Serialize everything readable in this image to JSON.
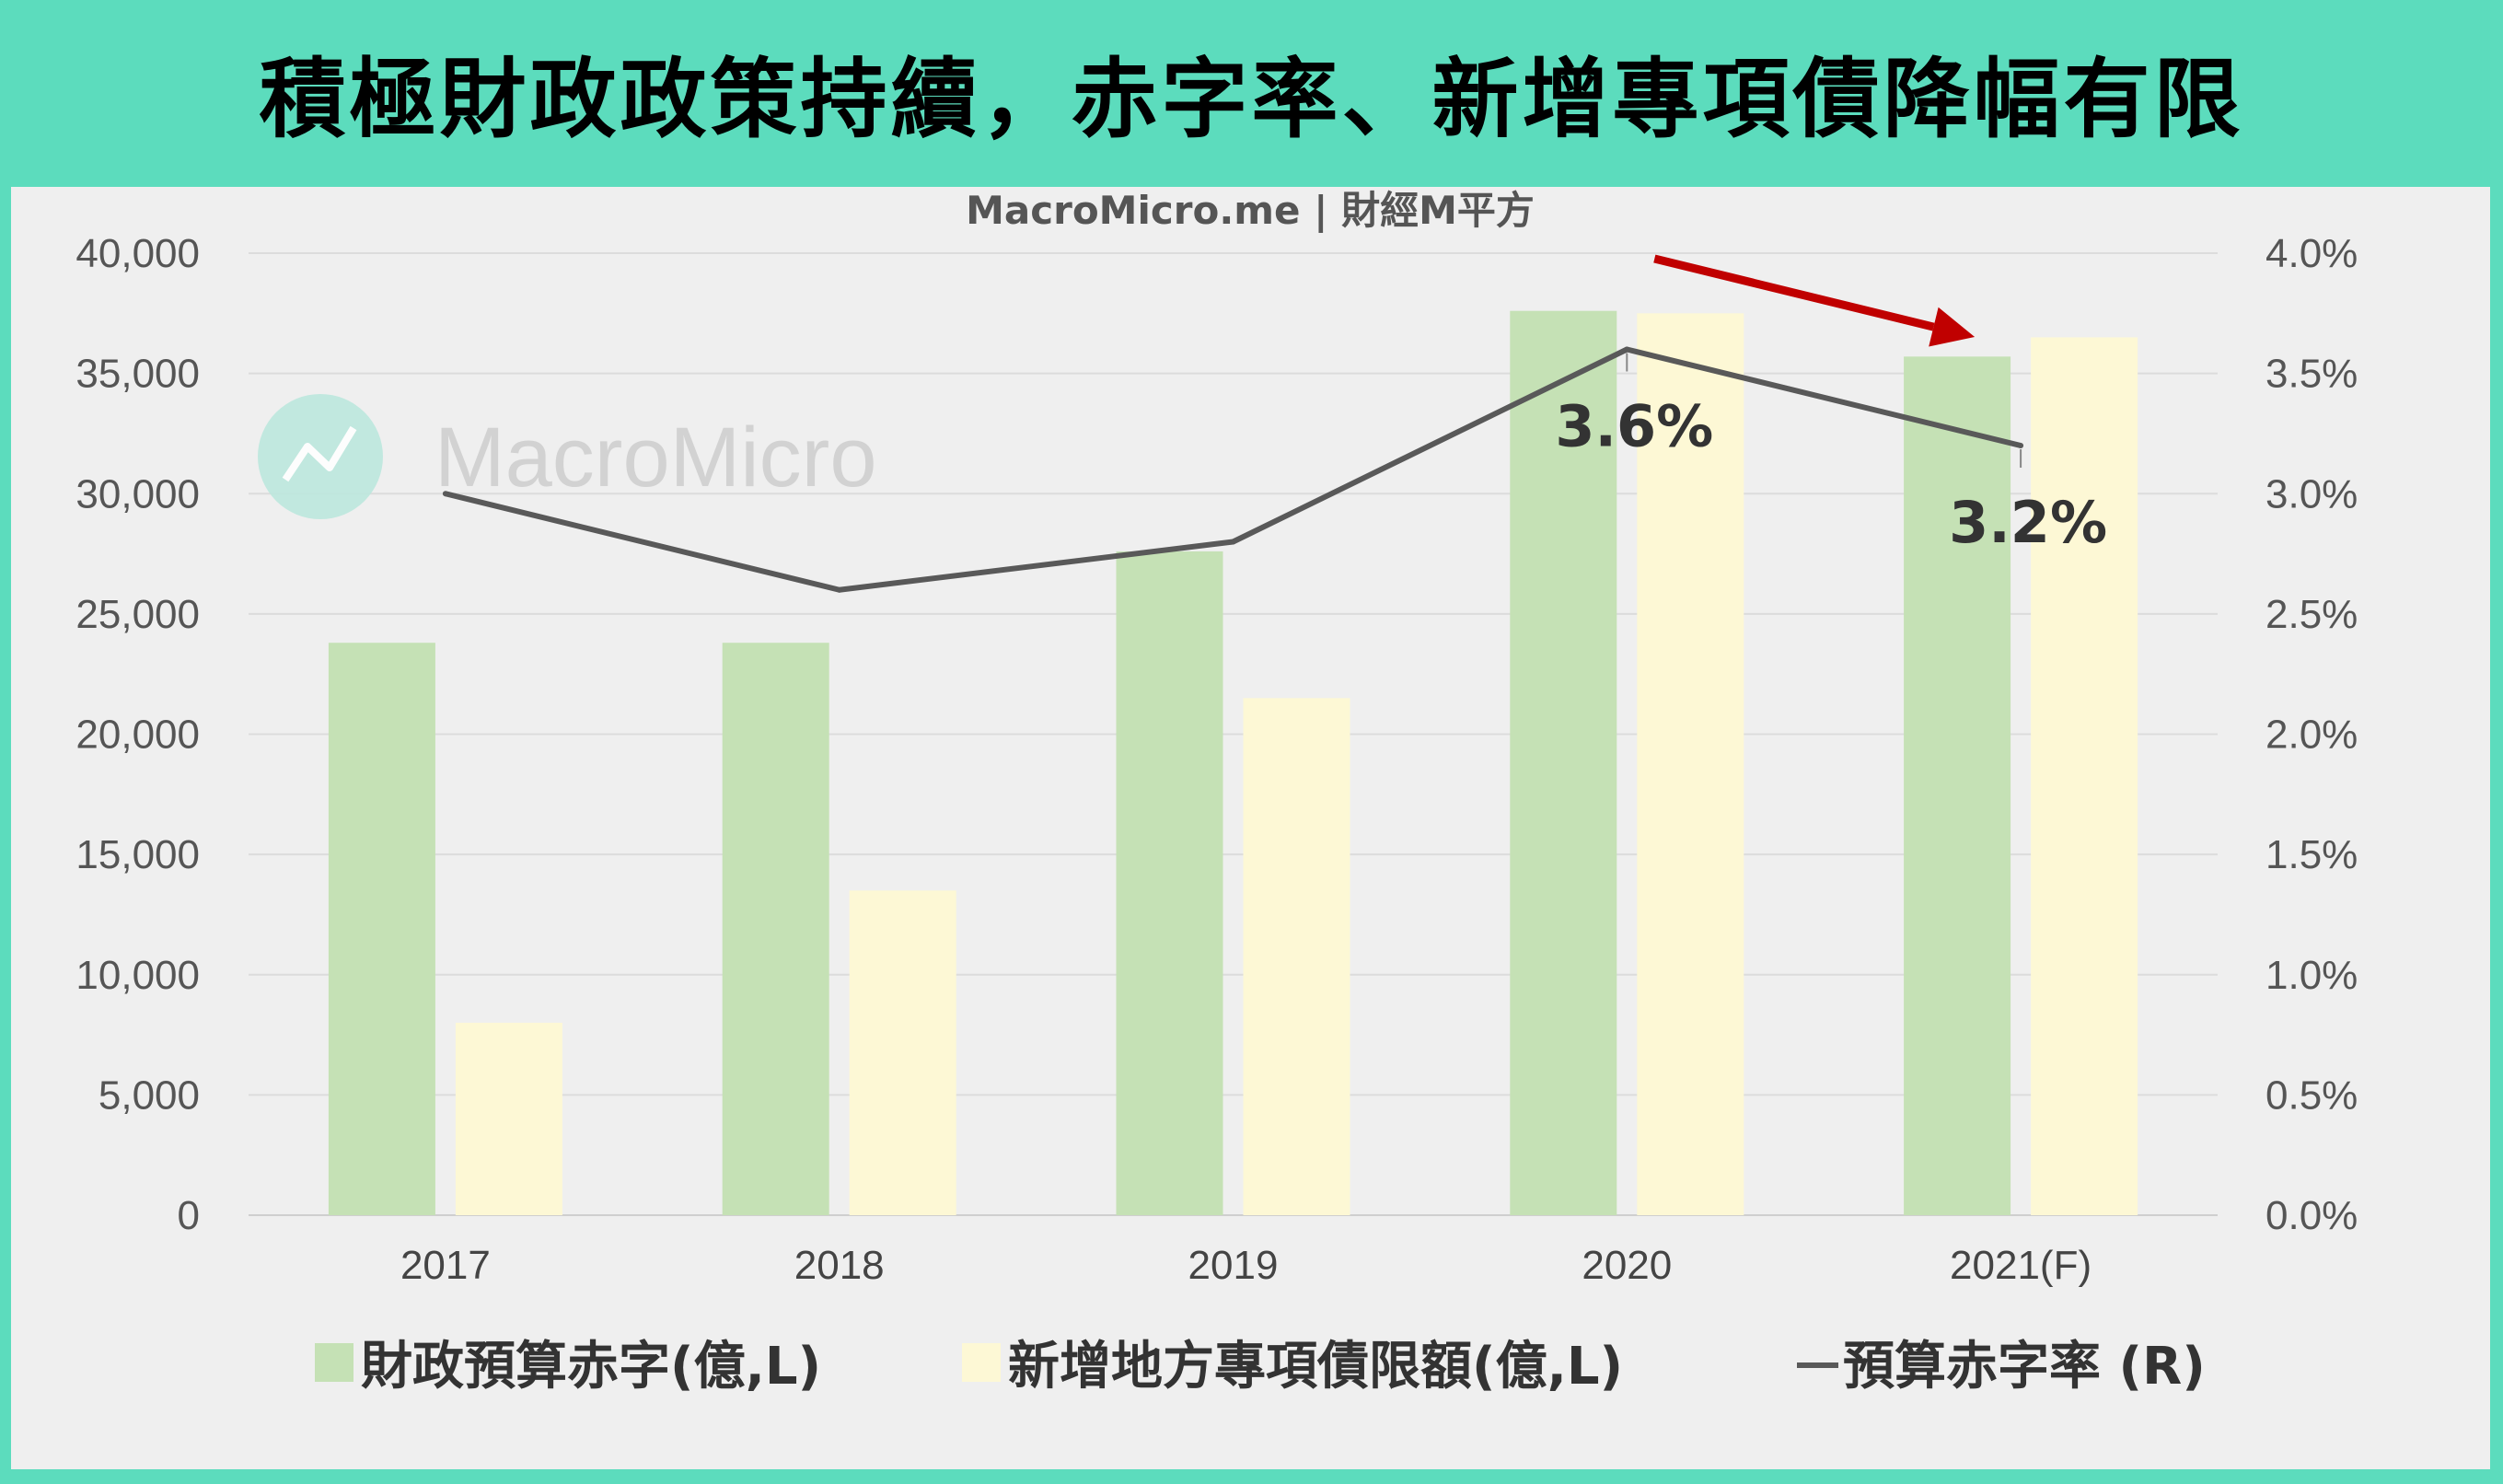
{
  "title": "積極財政政策持續，赤字率、新增專項債降幅有限",
  "source_label": "MacroMicro.me | 財經M平方",
  "watermark_text": "MacroMicro",
  "colors": {
    "header_bg": "#5cdcbd",
    "plot_bg": "#efefef",
    "deficit_bar": "#c5e1b5",
    "bond_bar": "#fdf8d5",
    "rate_line": "#595959",
    "arrow": "#c00000"
  },
  "chart_data": {
    "type": "bar",
    "categories": [
      "2017",
      "2018",
      "2019",
      "2020",
      "2021(F)"
    ],
    "series": [
      {
        "name": "財政預算赤字(億,L)",
        "axis": "left",
        "type": "bar",
        "values": [
          23800,
          23800,
          27600,
          37600,
          35700
        ]
      },
      {
        "name": "新增地方專項債限額(億,L)",
        "axis": "left",
        "type": "bar",
        "values": [
          8000,
          13500,
          21500,
          37500,
          36500
        ]
      },
      {
        "name": "預算赤字率 (R)",
        "axis": "right",
        "type": "line",
        "values": [
          3.0,
          2.6,
          2.8,
          3.6,
          3.2
        ]
      }
    ],
    "y_left": {
      "ticks": [
        "0",
        "5,000",
        "10,000",
        "15,000",
        "20,000",
        "25,000",
        "30,000",
        "35,000",
        "40,000"
      ],
      "ylim": [
        0,
        40000
      ]
    },
    "y_right": {
      "ticks": [
        "0.0%",
        "0.5%",
        "1.0%",
        "1.5%",
        "2.0%",
        "2.5%",
        "3.0%",
        "3.5%",
        "4.0%"
      ],
      "ylim": [
        0,
        4.0
      ]
    },
    "annotations": [
      {
        "label": "3.6%",
        "category": "2020",
        "value": 3.6
      },
      {
        "label": "3.2%",
        "category": "2021(F)",
        "value": 3.2
      }
    ],
    "arrow": {
      "from_category": "2020",
      "to_category": "2021(F)"
    },
    "legend": {
      "position": "bottom",
      "labels": [
        "財政預算赤字(億,L)",
        "新增地方專項債限額(億,L)",
        "預算赤字率 (R)"
      ]
    },
    "grid": true
  }
}
